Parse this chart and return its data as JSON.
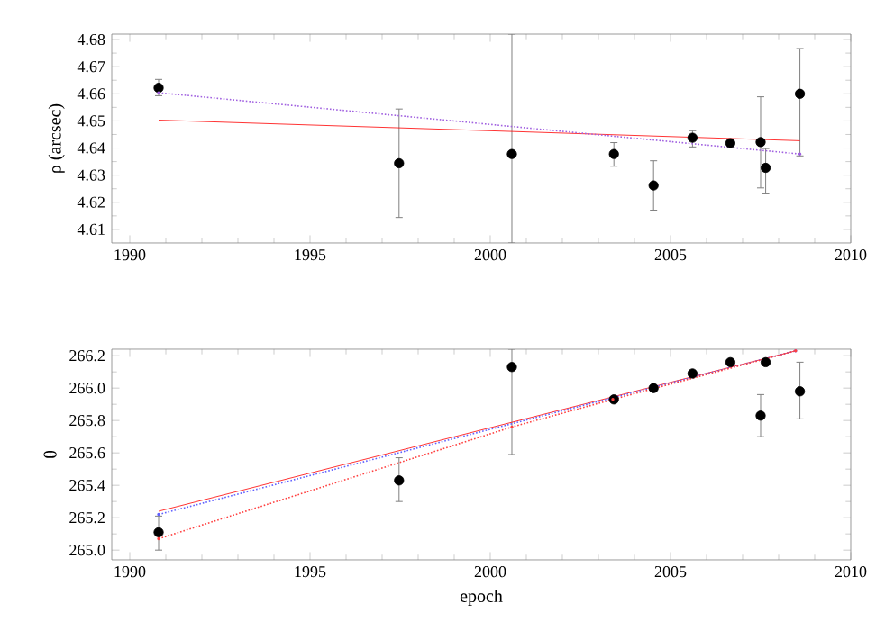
{
  "chart_data": [
    {
      "type": "scatter",
      "ylabel": "ρ (arcsec)",
      "xlim": [
        1989.5,
        2010
      ],
      "ylim": [
        4.605,
        4.682
      ],
      "xticks": [
        1990,
        1995,
        2000,
        2005,
        2010
      ],
      "yticks": [
        4.61,
        4.62,
        4.63,
        4.64,
        4.65,
        4.66,
        4.67,
        4.68
      ],
      "series": [
        {
          "color": "#000000",
          "marker": "circle",
          "x": [
            1990.8,
            1997.47,
            2000.6,
            2003.43,
            2004.53,
            2005.61,
            2006.66,
            2007.5,
            2007.64,
            2008.59
          ],
          "values": [
            4.6622,
            4.6344,
            4.6378,
            4.6378,
            4.6262,
            4.6438,
            4.6418,
            4.6422,
            4.6327,
            4.66
          ],
          "errors": [
            [
              4.6593,
              4.6653
            ],
            [
              4.6144,
              4.6544
            ],
            [
              4.605,
              4.682
            ],
            [
              4.6333,
              4.642
            ],
            [
              4.6171,
              4.6353
            ],
            [
              4.6404,
              4.6464
            ],
            [
              4.6402,
              4.6431
            ],
            [
              4.6253,
              4.6589
            ],
            [
              4.6231,
              4.6398
            ],
            [
              4.6371,
              4.6767
            ]
          ]
        },
        {
          "type": "line",
          "color": "#ff0000",
          "line_style": "solid",
          "marker": "none",
          "x": [
            1990.8,
            2008.59
          ],
          "values": [
            4.6503,
            4.6427
          ]
        },
        {
          "type": "line",
          "color": "#a060e0",
          "line_style": "dotted",
          "marker": "none",
          "x": [
            1990.8,
            2008.59
          ],
          "values": [
            4.6604,
            4.6378
          ]
        }
      ]
    },
    {
      "type": "scatter",
      "xlabel": "epoch",
      "ylabel": "θ",
      "xlim": [
        1989.5,
        2010
      ],
      "ylim": [
        264.94,
        266.24
      ],
      "xticks": [
        1990,
        1995,
        2000,
        2005,
        2010
      ],
      "yticks": [
        {
          "value": 265,
          "label": "265.0"
        },
        {
          "value": 265.2,
          "label": "265.2"
        },
        {
          "value": 265.4,
          "label": "265.4"
        },
        {
          "value": 265.6,
          "label": "265.6"
        },
        {
          "value": 265.8,
          "label": "265.8"
        },
        {
          "value": 266,
          "label": "266.0"
        },
        {
          "value": 266.2,
          "label": "266.2"
        }
      ],
      "series": [
        {
          "color": "#000000",
          "marker": "circle",
          "x": [
            1990.8,
            1997.47,
            2000.6,
            2003.43,
            2004.53,
            2005.61,
            2006.66,
            2007.5,
            2007.64,
            2008.59
          ],
          "values": [
            265.11,
            265.43,
            266.13,
            265.93,
            266.0,
            266.09,
            266.16,
            265.83,
            266.16,
            265.98
          ],
          "errors": [
            [
              265.0,
              265.21
            ],
            [
              265.3,
              265.57
            ],
            [
              265.59,
              266.24
            ],
            null,
            null,
            null,
            null,
            [
              265.7,
              265.96
            ],
            null,
            [
              265.81,
              266.16
            ]
          ]
        },
        {
          "type": "line",
          "color": "#ff0000",
          "line_style": "solid",
          "marker": "none",
          "x": [
            1990.8,
            2008.47
          ],
          "values": [
            265.24,
            266.23
          ]
        },
        {
          "type": "line",
          "color": "#6060ff",
          "line_style": "dotted",
          "marker": "none",
          "x": [
            1990.8,
            2008.47
          ],
          "values": [
            265.22,
            266.23
          ]
        },
        {
          "type": "line",
          "color": "#ff4040",
          "line_style": "dotted",
          "marker": "none",
          "x": [
            1990.8,
            2000.6,
            2003.4,
            2008.47
          ],
          "values": [
            265.07,
            265.76,
            265.93,
            266.23
          ]
        }
      ]
    }
  ]
}
